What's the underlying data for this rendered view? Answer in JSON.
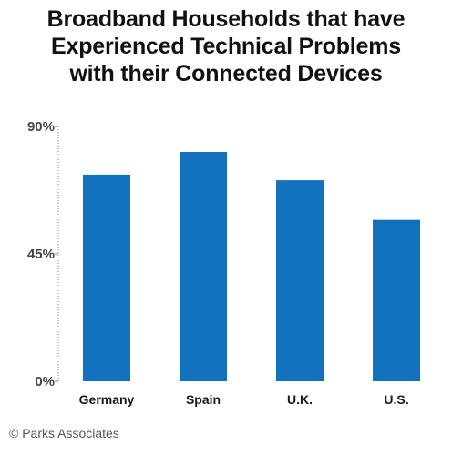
{
  "chart_data": {
    "type": "bar",
    "title_lines": [
      "Broadband Households that have",
      "Experienced Technical Problems",
      "with their Connected Devices"
    ],
    "categories": [
      "Germany",
      "Spain",
      "U.K.",
      "U.S."
    ],
    "values": [
      73,
      81,
      71,
      57
    ],
    "ylim": [
      0,
      90
    ],
    "yticks": [
      {
        "value": 0,
        "label": "0%"
      },
      {
        "value": 45,
        "label": "45%"
      },
      {
        "value": 90,
        "label": "90%"
      }
    ],
    "xlabel": "",
    "ylabel": "",
    "grid": false,
    "bar_color": "#1272BE",
    "axis_color": "#888888"
  },
  "footer": {
    "credit": "© Parks Associates"
  }
}
